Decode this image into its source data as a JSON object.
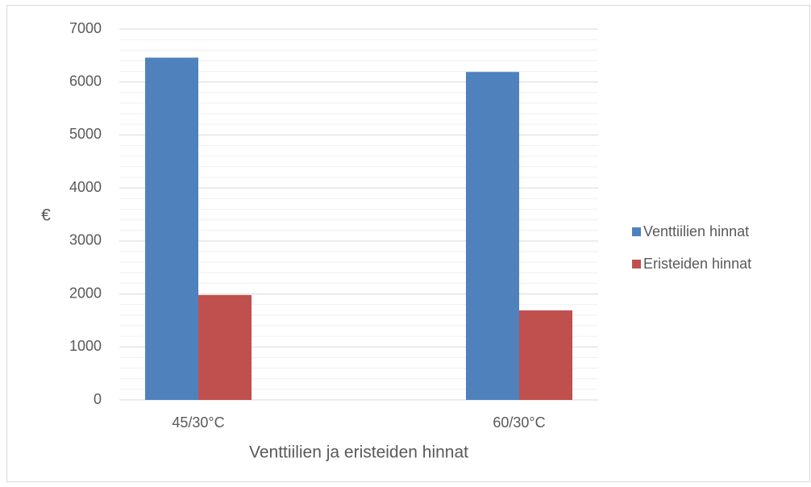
{
  "chart_data": {
    "type": "bar",
    "categories": [
      "45/30°C",
      "60/30°C"
    ],
    "series": [
      {
        "name": "Venttiilien hinnat",
        "color": "#4f81bd",
        "values": [
          6460,
          6190
        ]
      },
      {
        "name": "Eristeiden hinnat",
        "color": "#c0504d",
        "values": [
          1980,
          1690
        ]
      }
    ],
    "x_label": "Venttiilien ja eristeiden hinnat",
    "y_label": "€",
    "ylim": [
      0,
      7000
    ],
    "yticks": [
      0,
      1000,
      2000,
      3000,
      4000,
      5000,
      6000,
      7000
    ],
    "grid": true,
    "minor_grid": true,
    "legend": "right"
  }
}
